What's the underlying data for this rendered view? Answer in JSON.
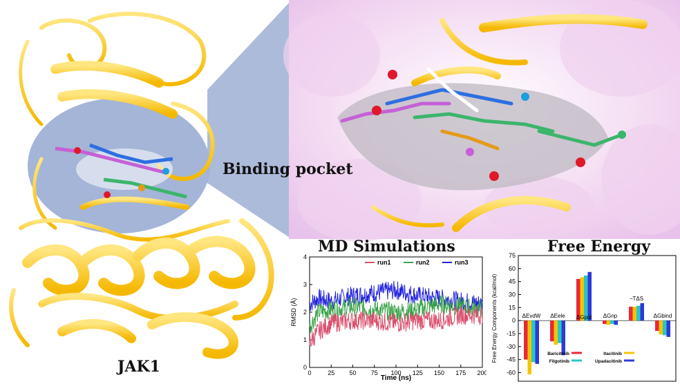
{
  "labels": {
    "binding_pocket": "Binding pocket",
    "protein": "JAK1"
  },
  "md_panel": {
    "title": "MD Simulations",
    "legend": [
      {
        "name": "run1",
        "color": "#d9506e"
      },
      {
        "name": "run2",
        "color": "#3aa34a"
      },
      {
        "name": "run3",
        "color": "#2323e0"
      }
    ]
  },
  "fe_panel": {
    "title": "Free Energy",
    "legend": [
      {
        "name": "Baricitinib",
        "color": "#e8283a"
      },
      {
        "name": "Itacitinib",
        "color": "#f5c400"
      },
      {
        "name": "Filgotinib",
        "color": "#29c6c6"
      },
      {
        "name": "Upadacitinib",
        "color": "#2f39d6"
      }
    ],
    "groups": [
      {
        "label": "ΔEvdW"
      },
      {
        "label": "ΔEele"
      },
      {
        "label": "ΔGpol"
      },
      {
        "label": "ΔGnp"
      },
      {
        "label": "−TΔS"
      },
      {
        "label": "ΔGbind"
      }
    ]
  },
  "chart_data": [
    {
      "type": "line",
      "title": "MD Simulations",
      "xlabel": "Time (ns)",
      "ylabel": "RMSD (Å)",
      "xlim": [
        0,
        200
      ],
      "ylim": [
        0,
        4
      ],
      "xticks": [
        0,
        25,
        50,
        75,
        100,
        125,
        150,
        175,
        200
      ],
      "yticks": [
        0,
        1,
        2,
        3,
        4
      ],
      "series": [
        {
          "name": "run1",
          "color": "#d9506e",
          "x": [
            0,
            10,
            25,
            50,
            75,
            100,
            125,
            150,
            175,
            200
          ],
          "values": [
            0.9,
            1.3,
            1.6,
            1.7,
            1.7,
            1.6,
            1.7,
            1.7,
            1.9,
            1.9
          ]
        },
        {
          "name": "run2",
          "color": "#3aa34a",
          "x": [
            0,
            10,
            25,
            50,
            75,
            100,
            125,
            150,
            175,
            200
          ],
          "values": [
            1.5,
            2.0,
            2.1,
            2.2,
            2.1,
            2.0,
            2.1,
            2.3,
            2.2,
            2.1
          ]
        },
        {
          "name": "run3",
          "color": "#2323e0",
          "x": [
            0,
            10,
            25,
            50,
            75,
            100,
            125,
            150,
            175,
            200
          ],
          "values": [
            2.3,
            2.5,
            2.4,
            2.6,
            2.7,
            2.8,
            2.6,
            2.5,
            2.4,
            2.3
          ]
        }
      ]
    },
    {
      "type": "bar",
      "title": "Free Energy",
      "ylabel": "Free Energy Components (kcal/mol)",
      "ylim": [
        -70,
        75
      ],
      "yticks": [
        75,
        60,
        45,
        30,
        15,
        0,
        -15,
        -30,
        -45,
        -60
      ],
      "categories": [
        "ΔEvdW",
        "ΔEele",
        "ΔGpol",
        "ΔGnp",
        "−TΔS",
        "ΔGbind"
      ],
      "series": [
        {
          "name": "Baricitinib",
          "color": "#e8283a",
          "values": [
            -45,
            -24,
            48,
            -4,
            16,
            -12
          ]
        },
        {
          "name": "Itacitinib",
          "color": "#f5c400",
          "values": [
            -62,
            -28,
            50,
            -5,
            16,
            -16
          ]
        },
        {
          "name": "Filgotinib",
          "color": "#29c6c6",
          "values": [
            -48,
            -26,
            52,
            -4,
            17,
            -17
          ]
        },
        {
          "name": "Upadacitinib",
          "color": "#2f39d6",
          "values": [
            -50,
            -40,
            56,
            -5,
            20,
            -19
          ]
        }
      ]
    }
  ]
}
